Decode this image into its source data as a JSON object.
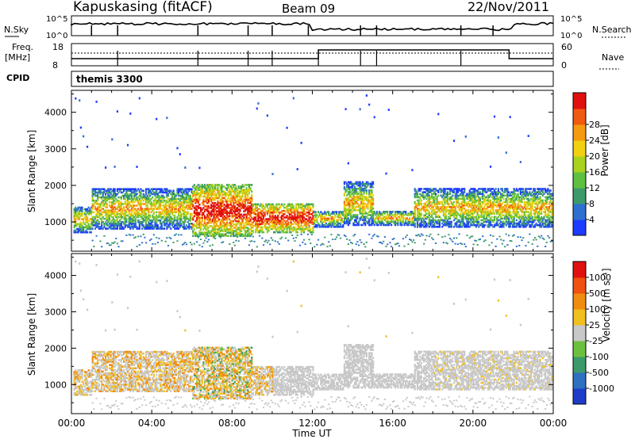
{
  "header": {
    "station": "Kapuskasing (fitACF)",
    "beam": "Beam 09",
    "date": "22/Nov/2011"
  },
  "top_panels": {
    "nsky_label": "N.Sky",
    "nsky_ticks": [
      "10^5",
      "10^0"
    ],
    "nsearch_label": "N.Search",
    "nsearch_ticks": [
      "10^5",
      "10^0"
    ],
    "freq_label_line1": "Freq.",
    "freq_label_line2": "[MHz]",
    "freq_ticks": [
      "18",
      "8"
    ],
    "nave_label": "Nave",
    "nave_ticks": [
      "60",
      "0"
    ],
    "cpid_label": "CPID",
    "cpid_value": "themis 3300"
  },
  "chart_data": [
    {
      "type": "heatmap",
      "name": "power",
      "ylabel": "Slant Range [km]",
      "yticks": [
        "1000",
        "2000",
        "3000",
        "4000"
      ],
      "ylim": [
        200,
        4600
      ],
      "colorbar_label": "Power [dB]",
      "colorbar_ticks": [
        "4",
        "8",
        "12",
        "16",
        "20",
        "24",
        "28"
      ],
      "colorbar_colors": [
        "#1e3cff",
        "#2f6fd0",
        "#3c9a6a",
        "#5fc040",
        "#a8d21e",
        "#f0d010",
        "#f49a10",
        "#f05a10",
        "#e01010"
      ],
      "xlim": [
        0,
        24
      ]
    },
    {
      "type": "heatmap",
      "name": "velocity",
      "ylabel": "Slant Range [km]",
      "yticks": [
        "1000",
        "2000",
        "3000",
        "4000"
      ],
      "ylim": [
        200,
        4600
      ],
      "colorbar_label": "Velocity [m s⁻¹]",
      "colorbar_ticks": [
        "1000",
        "500",
        "100",
        "25",
        "-25",
        "-100",
        "-500",
        "-1000"
      ],
      "colorbar_colors": [
        "#1e3cc8",
        "#2f70c0",
        "#3c9a6a",
        "#6cc040",
        "#c8c8c8",
        "#f0c020",
        "#f08c10",
        "#f05010",
        "#e01010"
      ],
      "xlim": [
        0,
        24
      ]
    }
  ],
  "x_axis": {
    "ticks": [
      "00:00",
      "04:00",
      "08:00",
      "12:00",
      "16:00",
      "20:00",
      "00:00"
    ],
    "label": "Time UT"
  }
}
